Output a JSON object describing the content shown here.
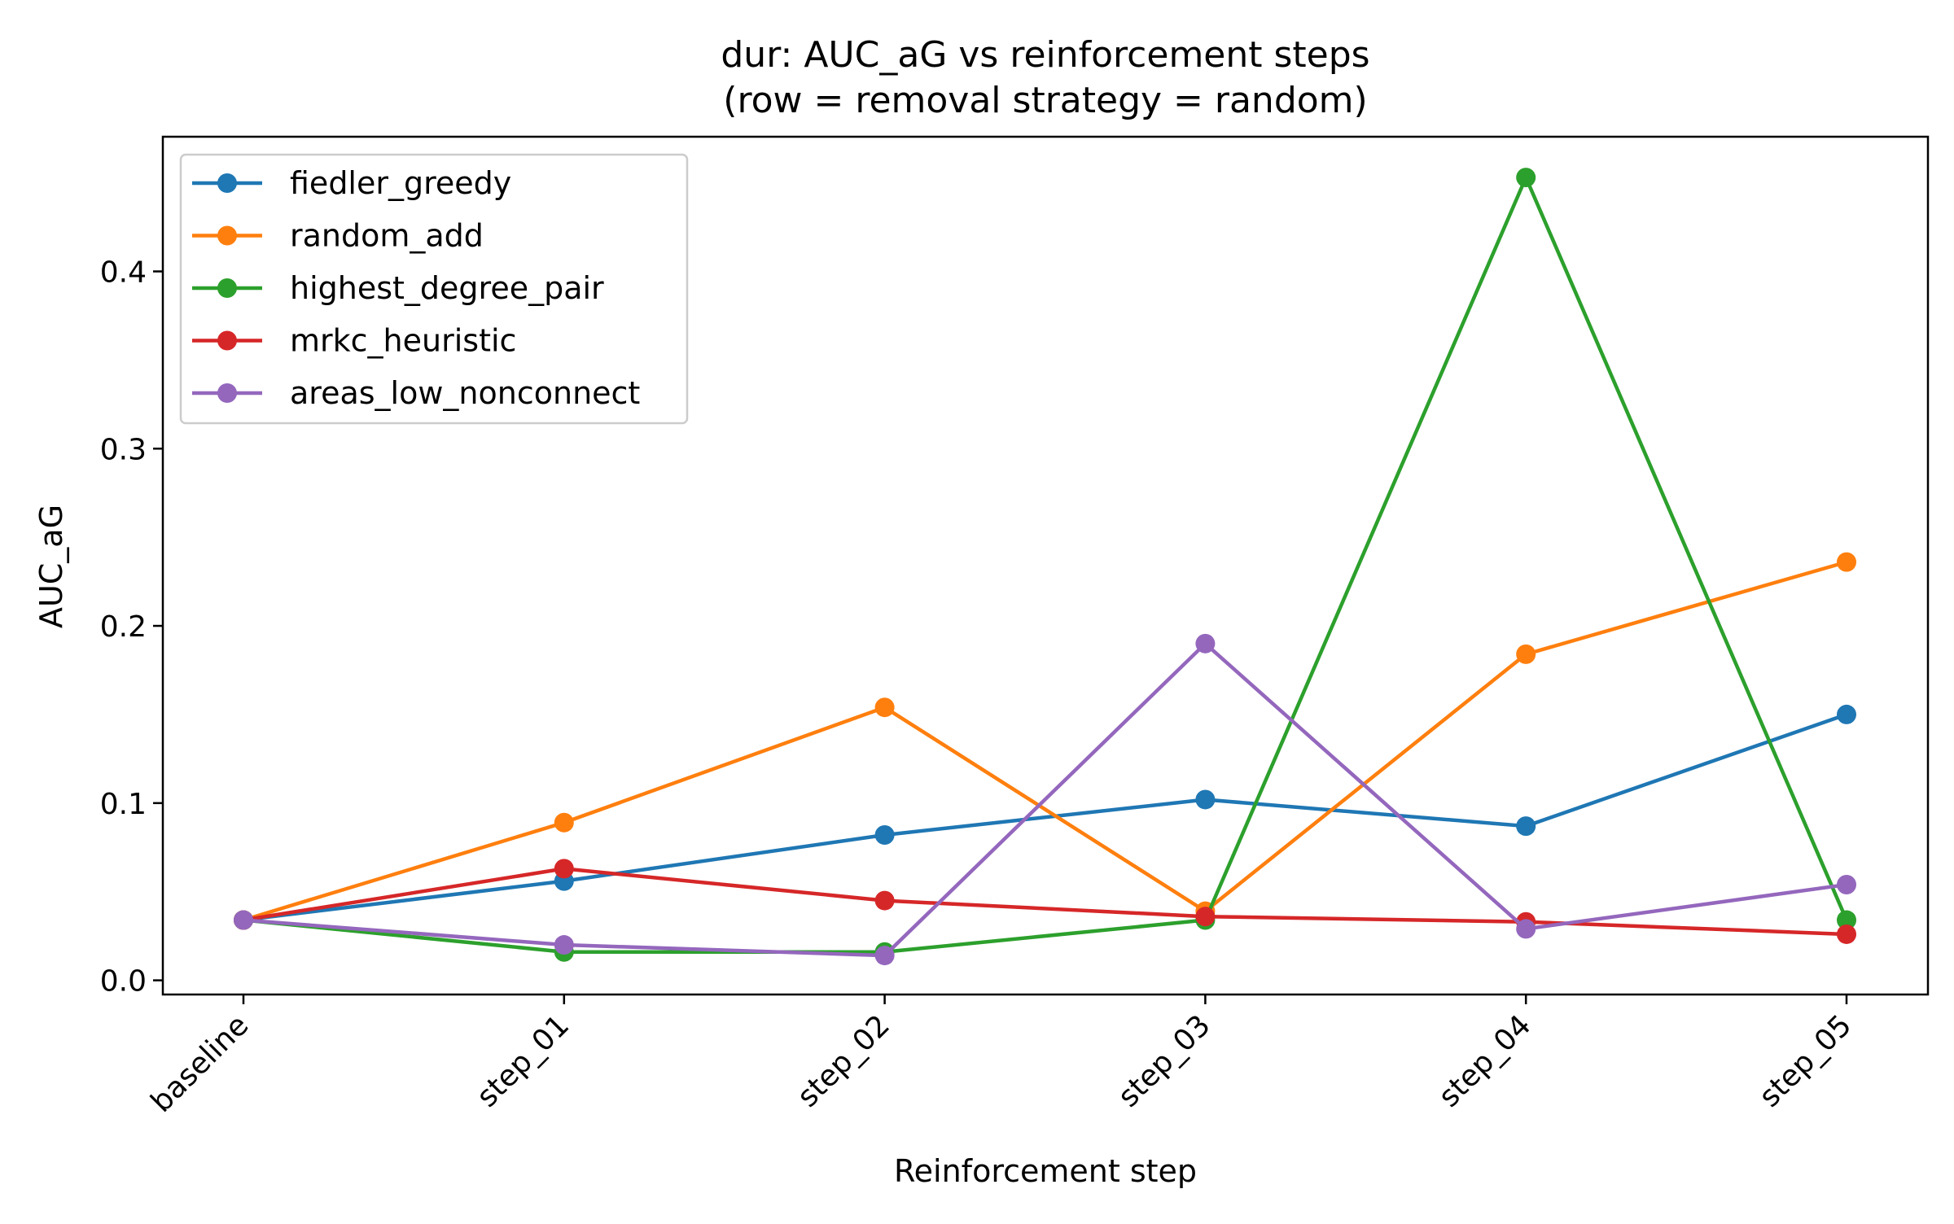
{
  "chart_data": {
    "type": "line",
    "title": "dur: AUC_aG vs reinforcement steps",
    "subtitle": "(row = removal strategy = random)",
    "xlabel": "Reinforcement step",
    "ylabel": "AUC_aG",
    "categories": [
      "baseline",
      "step_01",
      "step_02",
      "step_03",
      "step_04",
      "step_05"
    ],
    "ylim": [
      -0.008,
      0.476
    ],
    "yticks": [
      0.0,
      0.1,
      0.2,
      0.3,
      0.4
    ],
    "ytick_labels": [
      "0.0",
      "0.1",
      "0.2",
      "0.3",
      "0.4"
    ],
    "grid": false,
    "legend_position": "upper-left",
    "series": [
      {
        "name": "fiedler_greedy",
        "color": "#1f77b4",
        "values": [
          0.034,
          0.056,
          0.082,
          0.102,
          0.087,
          0.15
        ]
      },
      {
        "name": "random_add",
        "color": "#ff7f0e",
        "values": [
          0.034,
          0.089,
          0.154,
          0.039,
          0.184,
          0.236
        ]
      },
      {
        "name": "highest_degree_pair",
        "color": "#2ca02c",
        "values": [
          0.034,
          0.016,
          0.016,
          0.034,
          0.453,
          0.034
        ]
      },
      {
        "name": "mrkc_heuristic",
        "color": "#d62728",
        "values": [
          0.034,
          0.063,
          0.045,
          0.036,
          0.033,
          0.026
        ]
      },
      {
        "name": "areas_low_nonconnect",
        "color": "#9467bd",
        "values": [
          0.034,
          0.02,
          0.014,
          0.19,
          0.029,
          0.054
        ]
      }
    ]
  }
}
